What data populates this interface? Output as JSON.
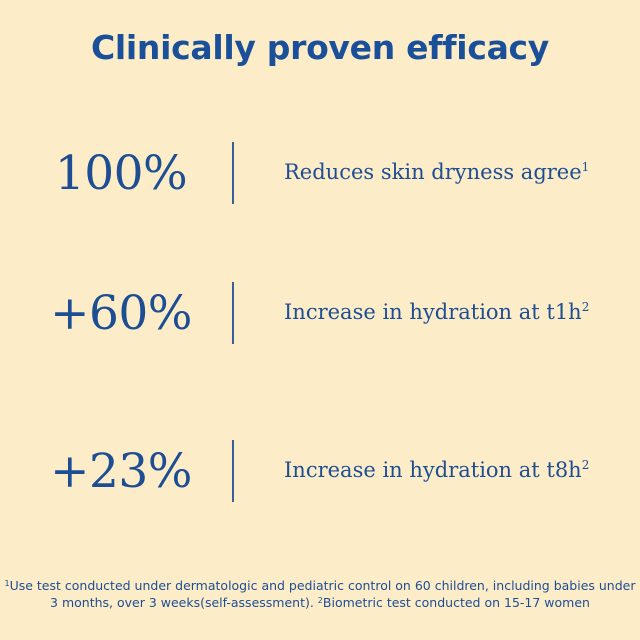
{
  "title": "Clinically proven efficacy",
  "stats": [
    {
      "value": "100%",
      "description": "Reduces skin dryness agree",
      "marker": "1"
    },
    {
      "value": "+60%",
      "description": "Increase in hydration at t1h",
      "marker": "2"
    },
    {
      "value": "+23%",
      "description": "Increase in hydration at t8h",
      "marker": "2"
    }
  ],
  "footnote": {
    "marker_1": "1",
    "text_1": "Use test conducted under dermatologic and pediatric control on 60 children, including babies under 3 months, over 3 weeks(self-assessment). ",
    "marker_2": "2",
    "text_2": "Biometric test conducted on 15-17 women"
  },
  "colors": {
    "background": "#fcecc8",
    "text": "#1d4e94",
    "divider": "#3a5f96"
  }
}
